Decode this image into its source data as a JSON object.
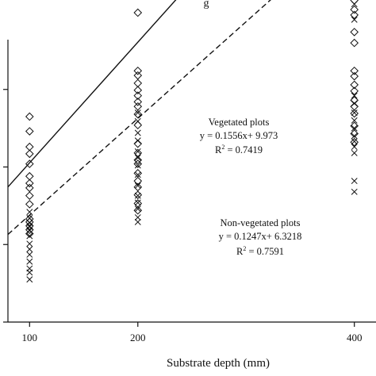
{
  "top_fragment": "g",
  "chart_data": {
    "type": "scatter",
    "title": "",
    "xlabel": "Substrate depth (mm)",
    "ylabel": "",
    "x_ticks": [
      100,
      200,
      400
    ],
    "x_tick_labels": [
      "100",
      "200",
      "400"
    ],
    "xlim": [
      80,
      420
    ],
    "ylim": [
      5,
      45
    ],
    "y_ticks": [
      5,
      15,
      25,
      35,
      45
    ],
    "grid": false,
    "series": [
      {
        "name": "Vegetated plots",
        "marker": "diamond",
        "color": "#111111",
        "points": [
          [
            100,
            31.5
          ],
          [
            100,
            29.6
          ],
          [
            100,
            27.6
          ],
          [
            100,
            26.7
          ],
          [
            100,
            25.4
          ],
          [
            100,
            23.8
          ],
          [
            100,
            22.9
          ],
          [
            100,
            22.3
          ],
          [
            100,
            21.3
          ],
          [
            100,
            20.2
          ],
          [
            100,
            18.3
          ],
          [
            100,
            17.9
          ],
          [
            100,
            17.4
          ],
          [
            100,
            16.9
          ],
          [
            100,
            16.4
          ],
          [
            200,
            44.9
          ],
          [
            200,
            37.4
          ],
          [
            200,
            36.8
          ],
          [
            200,
            35.8
          ],
          [
            200,
            34.9
          ],
          [
            200,
            34.2
          ],
          [
            200,
            33.4
          ],
          [
            200,
            32.8
          ],
          [
            200,
            31.8
          ],
          [
            200,
            30.4
          ],
          [
            200,
            28.0
          ],
          [
            200,
            26.8
          ],
          [
            200,
            25.9
          ],
          [
            200,
            25.4
          ],
          [
            200,
            24.2
          ],
          [
            200,
            23.2
          ],
          [
            200,
            22.4
          ],
          [
            200,
            21.4
          ],
          [
            200,
            20.3
          ],
          [
            200,
            19.4
          ],
          [
            400,
            50.0
          ],
          [
            400,
            49.3
          ],
          [
            400,
            48.4
          ],
          [
            400,
            47.4
          ],
          [
            400,
            46.5
          ],
          [
            400,
            45.3
          ],
          [
            400,
            44.6
          ],
          [
            400,
            42.4
          ],
          [
            400,
            41.0
          ],
          [
            400,
            37.4
          ],
          [
            400,
            36.7
          ],
          [
            400,
            35.6
          ],
          [
            400,
            34.8
          ],
          [
            400,
            33.6
          ],
          [
            400,
            32.8
          ],
          [
            400,
            31.9
          ],
          [
            400,
            30.3
          ],
          [
            400,
            29.3
          ],
          [
            400,
            28.2
          ]
        ]
      },
      {
        "name": "Non-vegetated plots",
        "marker": "cross",
        "color": "#111111",
        "points": [
          [
            100,
            19.2
          ],
          [
            100,
            18.4
          ],
          [
            100,
            17.8
          ],
          [
            100,
            17.3
          ],
          [
            100,
            16.8
          ],
          [
            100,
            16.1
          ],
          [
            100,
            15.1
          ],
          [
            100,
            14.4
          ],
          [
            100,
            13.7
          ],
          [
            100,
            12.8
          ],
          [
            100,
            11.9
          ],
          [
            100,
            11.4
          ],
          [
            100,
            10.5
          ],
          [
            200,
            32.0
          ],
          [
            200,
            30.9
          ],
          [
            200,
            29.4
          ],
          [
            200,
            28.4
          ],
          [
            200,
            27.0
          ],
          [
            200,
            26.2
          ],
          [
            200,
            25.2
          ],
          [
            200,
            24.0
          ],
          [
            200,
            22.6
          ],
          [
            200,
            21.3
          ],
          [
            200,
            20.4
          ],
          [
            200,
            19.6
          ],
          [
            200,
            18.5
          ],
          [
            200,
            17.9
          ],
          [
            400,
            48.2
          ],
          [
            400,
            46.0
          ],
          [
            400,
            44.0
          ],
          [
            400,
            34.2
          ],
          [
            400,
            33.2
          ],
          [
            400,
            32.0
          ],
          [
            400,
            31.0
          ],
          [
            400,
            30.0
          ],
          [
            400,
            29.0
          ],
          [
            400,
            28.3
          ],
          [
            400,
            27.6
          ],
          [
            400,
            26.8
          ],
          [
            400,
            23.2
          ],
          [
            400,
            21.8
          ]
        ]
      }
    ],
    "trendlines": [
      {
        "series": "Vegetated plots",
        "slope": 0.1556,
        "intercept": 9.973,
        "style": "solid",
        "equation": "y = 0.1556x+ 9.973",
        "r2_prefix": "R",
        "r2_sup": "2",
        "r2_value": " = 0.7419"
      },
      {
        "series": "Non-vegetated plots",
        "slope": 0.1247,
        "intercept": 6.3218,
        "style": "dashed",
        "equation": "y = 0.1247x+ 6.3218",
        "r2_prefix": "R",
        "r2_sup": "2",
        "r2_value": " = 0.7591"
      }
    ]
  }
}
